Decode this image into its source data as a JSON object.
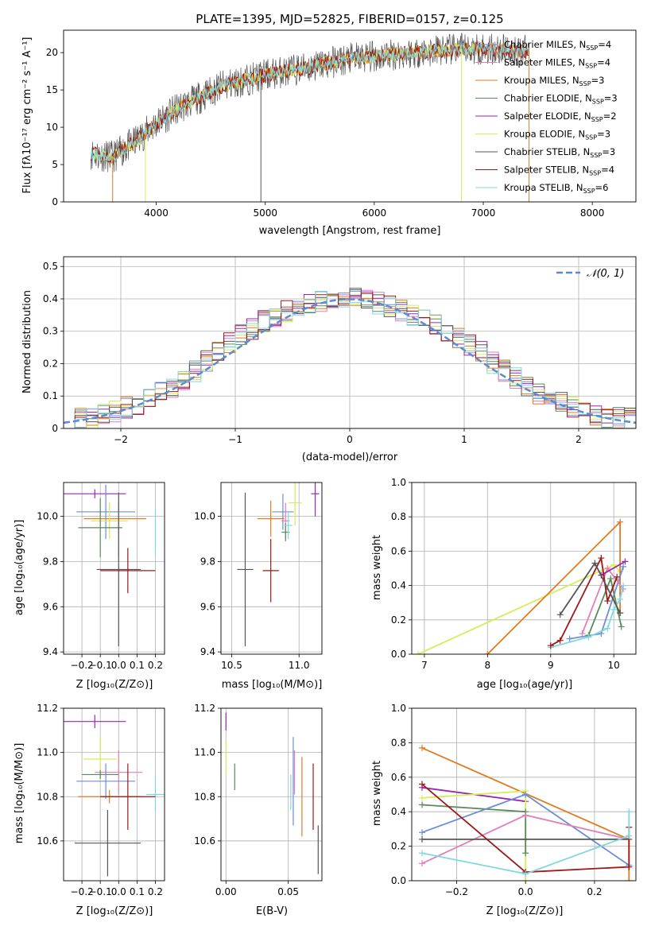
{
  "colors": {
    "chabrier_miles": "#6b8ed6",
    "salpeter_miles": "#e07fb9",
    "kroupa_miles": "#e07b20",
    "chabrier_elodie": "#5a8a5a",
    "salpeter_elodie": "#9a27b0",
    "kroupa_elodie": "#d6ec5a",
    "chabrier_stelib": "#555555",
    "salpeter_stelib": "#a01818",
    "kroupa_stelib": "#7fd8e0",
    "gaussian": "#5a8ad6"
  },
  "chart_data": [
    {
      "id": "spectrum",
      "type": "line",
      "title": "PLATE=1395, MJD=52825, FIBERID=0157, z=0.125",
      "xlabel": "wavelength [Angstrom, rest frame]",
      "ylabel": "Flux [fλ10⁻¹⁷ erg cm⁻² s⁻¹ A⁻¹]",
      "xlim": [
        3150,
        8400
      ],
      "ylim": [
        0,
        23
      ],
      "xticks": [
        4000,
        5000,
        6000,
        7000,
        8000
      ],
      "yticks": [
        0,
        5,
        10,
        15,
        20
      ],
      "continuum": {
        "x": [
          3400,
          3600,
          3800,
          4000,
          4200,
          4400,
          4600,
          4800,
          5000,
          5200,
          5400,
          5600,
          5800,
          6000,
          6200,
          6400,
          6600,
          6800,
          7000,
          7200,
          7400
        ],
        "y": [
          6.5,
          6.0,
          8.0,
          10.5,
          12.5,
          14.0,
          15.5,
          16.2,
          17.0,
          17.5,
          18.0,
          18.7,
          19.2,
          19.5,
          19.8,
          20.0,
          20.3,
          20.4,
          20.5,
          20.3,
          20.2
        ]
      },
      "legend": [
        {
          "label": "Chabrier MILES, N",
          "sub": "SSP",
          "tail": "=4",
          "color_key": "chabrier_miles"
        },
        {
          "label": "Salpeter MILES, N",
          "sub": "SSP",
          "tail": "=4",
          "color_key": "salpeter_miles"
        },
        {
          "label": "Kroupa MILES, N",
          "sub": "SSP",
          "tail": "=3",
          "color_key": "kroupa_miles"
        },
        {
          "label": "Chabrier ELODIE, N",
          "sub": "SSP",
          "tail": "=3",
          "color_key": "chabrier_elodie"
        },
        {
          "label": "Salpeter ELODIE, N",
          "sub": "SSP",
          "tail": "=2",
          "color_key": "salpeter_elodie"
        },
        {
          "label": "Kroupa ELODIE, N",
          "sub": "SSP",
          "tail": "=3",
          "color_key": "kroupa_elodie"
        },
        {
          "label": "Chabrier STELIB, N",
          "sub": "SSP",
          "tail": "=3",
          "color_key": "chabrier_stelib"
        },
        {
          "label": "Salpeter STELIB, N",
          "sub": "SSP",
          "tail": "=4",
          "color_key": "salpeter_stelib"
        },
        {
          "label": "Kroupa STELIB, N",
          "sub": "SSP",
          "tail": "=6",
          "color_key": "kroupa_stelib"
        }
      ]
    },
    {
      "id": "residuals",
      "type": "line",
      "xlabel": "(data-model)/error",
      "ylabel": "Normed distribution",
      "xlim": [
        -2.5,
        2.5
      ],
      "ylim": [
        0,
        0.53
      ],
      "xticks": [
        -2,
        -1,
        0,
        1,
        2
      ],
      "yticks": [
        0.0,
        0.1,
        0.2,
        0.3,
        0.4,
        0.5
      ],
      "xtick_labels": [
        "−2",
        "−1",
        "0",
        "1",
        "2"
      ],
      "legend_label": "𝒩(0, 1)",
      "hist_envelope": {
        "x": [
          -2.5,
          -2.3,
          -2.1,
          -1.9,
          -1.7,
          -1.5,
          -1.3,
          -1.1,
          -0.9,
          -0.7,
          -0.5,
          -0.3,
          -0.1,
          0.1,
          0.3,
          0.5,
          0.7,
          0.9,
          1.1,
          1.3,
          1.5,
          1.7,
          1.9,
          2.1,
          2.3,
          2.5
        ],
        "y": [
          0.02,
          0.03,
          0.05,
          0.07,
          0.1,
          0.14,
          0.19,
          0.25,
          0.3,
          0.34,
          0.37,
          0.39,
          0.41,
          0.41,
          0.38,
          0.36,
          0.33,
          0.29,
          0.25,
          0.19,
          0.14,
          0.1,
          0.07,
          0.05,
          0.03,
          0.03
        ]
      }
    },
    {
      "id": "age_vs_Z",
      "type": "scatter",
      "xlabel": "Z [log₁₀(Z/Z⊙)]",
      "ylabel": "age  [log₁₀(age/yr)]",
      "xlim": [
        -0.3,
        0.25
      ],
      "ylim": [
        9.39,
        10.15
      ],
      "xticks": [
        -0.2,
        -0.1,
        0.0,
        0.1,
        0.2
      ],
      "xtick_labels": [
        "−0.2",
        "−0.1",
        "0.0",
        "0.1",
        "0.2"
      ],
      "yticks": [
        9.4,
        9.6,
        9.8,
        10.0
      ],
      "ytick_labels": [
        "9.4",
        "9.6",
        "9.8",
        "10.0"
      ],
      "points": [
        {
          "c": "salpeter_elodie",
          "x": -0.13,
          "xe": 0.17,
          "y": 10.1,
          "ye": 0.02
        },
        {
          "c": "chabrier_miles",
          "x": -0.07,
          "xe": 0.16,
          "y": 10.02,
          "ye": 0.12
        },
        {
          "c": "salpeter_miles",
          "x": 0.0,
          "xe": 0.0,
          "y": 9.94,
          "ye": 0.12
        },
        {
          "c": "kroupa_miles",
          "x": -0.02,
          "xe": 0.17,
          "y": 9.99,
          "ye": 0.0
        },
        {
          "c": "kroupa_elodie",
          "x": -0.05,
          "xe": 0.1,
          "y": 9.98,
          "ye": 0.08
        },
        {
          "c": "chabrier_elodie",
          "x": -0.1,
          "xe": 0.12,
          "y": 9.95,
          "ye": 0.13
        },
        {
          "c": "kroupa_stelib",
          "x": 0.2,
          "xe": 0.0,
          "y": 9.93,
          "ye": 0.1
        },
        {
          "c": "chabrier_stelib",
          "x": 0.0,
          "xe": 0.12,
          "y": 9.765,
          "ye": 0.34
        },
        {
          "c": "salpeter_stelib",
          "x": 0.05,
          "xe": 0.15,
          "y": 9.76,
          "ye": 0.1
        }
      ]
    },
    {
      "id": "age_vs_mass",
      "type": "scatter",
      "xlabel": "mass [log₁₀(M/M⊙)]",
      "xlim": [
        10.42,
        11.17
      ],
      "ylim": [
        9.39,
        10.15
      ],
      "xticks": [
        10.5,
        11.0
      ],
      "xtick_labels": [
        "10.5",
        "11.0"
      ],
      "yticks": [
        9.4,
        9.6,
        9.8,
        10.0
      ],
      "ytick_labels": [
        "9.4",
        "9.6",
        "9.8",
        "10.0"
      ],
      "points": [
        {
          "c": "salpeter_elodie",
          "x": 11.12,
          "xe": 0.03,
          "y": 10.1,
          "ye": 0.1
        },
        {
          "c": "kroupa_elodie",
          "x": 10.97,
          "xe": 0.05,
          "y": 10.06,
          "ye": 0.1
        },
        {
          "c": "chabrier_miles",
          "x": 10.88,
          "xe": 0.08,
          "y": 10.02,
          "ye": 0.08
        },
        {
          "c": "salpeter_miles",
          "x": 10.9,
          "xe": 0.03,
          "y": 9.98,
          "ye": 0.08
        },
        {
          "c": "kroupa_miles",
          "x": 10.79,
          "xe": 0.1,
          "y": 9.99,
          "ye": 0.08
        },
        {
          "c": "chabrier_elodie",
          "x": 10.9,
          "xe": 0.03,
          "y": 9.93,
          "ye": 0.04
        },
        {
          "c": "kroupa_stelib",
          "x": 10.92,
          "xe": 0.03,
          "y": 9.96,
          "ye": 0.06
        },
        {
          "c": "chabrier_stelib",
          "x": 10.6,
          "xe": 0.06,
          "y": 9.765,
          "ye": 0.34
        },
        {
          "c": "salpeter_stelib",
          "x": 10.79,
          "xe": 0.06,
          "y": 9.76,
          "ye": 0.14
        }
      ]
    },
    {
      "id": "mw_vs_age",
      "type": "line",
      "xlabel": "age  [log₁₀(age/yr)]",
      "ylabel": "mass weight",
      "xlim": [
        6.8,
        10.35
      ],
      "ylim": [
        0,
        1.0
      ],
      "xticks": [
        7,
        8,
        9,
        10
      ],
      "xtick_labels": [
        "7",
        "8",
        "9",
        "10"
      ],
      "yticks": [
        0.0,
        0.2,
        0.4,
        0.6,
        0.8,
        1.0
      ],
      "ytick_labels": [
        "0.0",
        "0.2",
        "0.4",
        "0.6",
        "0.8",
        "1.0"
      ],
      "series": [
        {
          "c": "kroupa_elodie",
          "x": [
            6.9,
            10.0,
            10.1
          ],
          "y": [
            0.0,
            0.52,
            0.48
          ]
        },
        {
          "c": "kroupa_miles",
          "x": [
            8.0,
            10.1,
            10.1
          ],
          "y": [
            0.0,
            0.77,
            0.24
          ]
        },
        {
          "c": "chabrier_miles",
          "x": [
            9.3,
            9.8,
            10.15
          ],
          "y": [
            0.09,
            0.12,
            0.51
          ]
        },
        {
          "c": "salpeter_miles",
          "x": [
            9.5,
            9.9,
            10.15
          ],
          "y": [
            0.12,
            0.5,
            0.38
          ]
        },
        {
          "c": "salpeter_elodie",
          "x": [
            9.8,
            10.18
          ],
          "y": [
            0.46,
            0.54
          ]
        },
        {
          "c": "chabrier_elodie",
          "x": [
            9.6,
            9.95,
            10.12
          ],
          "y": [
            0.11,
            0.44,
            0.16
          ]
        },
        {
          "c": "kroupa_stelib",
          "x": [
            9.0,
            9.6,
            9.9,
            10.0,
            10.1,
            10.15
          ],
          "y": [
            0.04,
            0.1,
            0.15,
            0.26,
            0.32,
            0.4
          ]
        },
        {
          "c": "salpeter_stelib",
          "x": [
            9.0,
            9.15,
            9.8,
            9.9,
            10.05
          ],
          "y": [
            0.05,
            0.08,
            0.56,
            0.31,
            0.45
          ]
        },
        {
          "c": "chabrier_stelib",
          "x": [
            9.15,
            9.7,
            10.1
          ],
          "y": [
            0.23,
            0.53,
            0.24
          ]
        }
      ]
    },
    {
      "id": "mass_vs_Z",
      "type": "scatter",
      "xlabel": "Z [log₁₀(Z/Z⊙)]",
      "ylabel": "mass [log₁₀(M/M⊙)]",
      "xlim": [
        -0.3,
        0.25
      ],
      "ylim": [
        10.42,
        11.2
      ],
      "xticks": [
        -0.2,
        -0.1,
        0.0,
        0.1,
        0.2
      ],
      "xtick_labels": [
        "−0.2",
        "−0.1",
        "0.0",
        "0.1",
        "0.2"
      ],
      "yticks": [
        10.6,
        10.8,
        11.0,
        11.2
      ],
      "ytick_labels": [
        "10.6",
        "10.8",
        "11.0",
        "11.2"
      ],
      "points": [
        {
          "c": "salpeter_elodie",
          "x": -0.13,
          "xe": 0.17,
          "y": 11.14,
          "ye": 0.03
        },
        {
          "c": "kroupa_elodie",
          "x": -0.1,
          "xe": 0.09,
          "y": 10.97,
          "ye": 0.1
        },
        {
          "c": "salpeter_miles",
          "x": 0.0,
          "xe": 0.13,
          "y": 10.91,
          "ye": 0.1
        },
        {
          "c": "chabrier_elodie",
          "x": -0.1,
          "xe": 0.1,
          "y": 10.9,
          "ye": 0.02
        },
        {
          "c": "chabrier_miles",
          "x": -0.07,
          "xe": 0.16,
          "y": 10.87,
          "ye": 0.08
        },
        {
          "c": "kroupa_stelib",
          "x": 0.2,
          "xe": 0.05,
          "y": 10.81,
          "ye": 0.08
        },
        {
          "c": "kroupa_miles",
          "x": -0.05,
          "xe": 0.17,
          "y": 10.8,
          "ye": 0.03
        },
        {
          "c": "salpeter_stelib",
          "x": 0.05,
          "xe": 0.15,
          "y": 10.8,
          "ye": 0.15
        },
        {
          "c": "chabrier_stelib",
          "x": -0.06,
          "xe": 0.18,
          "y": 10.59,
          "ye": 0.15
        }
      ]
    },
    {
      "id": "mass_vs_ebv",
      "type": "scatter",
      "xlabel": "E(B-V)",
      "xlim": [
        -0.004,
        0.077
      ],
      "ylim": [
        10.42,
        11.2
      ],
      "xticks": [
        0.0,
        0.05
      ],
      "xtick_labels": [
        "0.00",
        "0.05"
      ],
      "yticks": [
        10.6,
        10.8,
        11.0,
        11.2
      ],
      "ytick_labels": [
        "10.6",
        "10.8",
        "11.0",
        "11.2"
      ],
      "points": [
        {
          "c": "salpeter_elodie",
          "x": 0.0,
          "xe": 0.0,
          "y": 11.14,
          "ye": 0.04
        },
        {
          "c": "kroupa_elodie",
          "x": 0.0,
          "xe": 0.0,
          "y": 10.98,
          "ye": 0.08
        },
        {
          "c": "chabrier_elodie",
          "x": 0.007,
          "xe": 0.0,
          "y": 10.89,
          "ye": 0.06
        },
        {
          "c": "salpeter_miles",
          "x": 0.055,
          "xe": 0.0,
          "y": 10.91,
          "ye": 0.1
        },
        {
          "c": "kroupa_stelib",
          "x": 0.052,
          "xe": 0.0,
          "y": 10.82,
          "ye": 0.08
        },
        {
          "c": "chabrier_miles",
          "x": 0.054,
          "xe": 0.0,
          "y": 10.87,
          "ye": 0.2
        },
        {
          "c": "kroupa_miles",
          "x": 0.061,
          "xe": 0.0,
          "y": 10.8,
          "ye": 0.18
        },
        {
          "c": "salpeter_stelib",
          "x": 0.07,
          "xe": 0.0,
          "y": 10.8,
          "ye": 0.15
        },
        {
          "c": "chabrier_stelib",
          "x": 0.074,
          "xe": 0.0,
          "y": 10.56,
          "ye": 0.11
        }
      ]
    },
    {
      "id": "mw_vs_Z",
      "type": "line",
      "xlabel": "Z [log₁₀(Z/Z⊙)]",
      "ylabel": "mass weight",
      "xlim": [
        -0.33,
        0.32
      ],
      "ylim": [
        0,
        1.0
      ],
      "xticks": [
        -0.2,
        0.0,
        0.2
      ],
      "xtick_labels": [
        "−0.2",
        "0.0",
        "0.2"
      ],
      "yticks": [
        0.0,
        0.2,
        0.4,
        0.6,
        0.8,
        1.0
      ],
      "ytick_labels": [
        "0.0",
        "0.2",
        "0.4",
        "0.6",
        "0.8",
        "1.0"
      ],
      "series": [
        {
          "c": "kroupa_miles",
          "x": [
            -0.3,
            0.3,
            0.3
          ],
          "y": [
            0.77,
            0.24,
            0.0
          ]
        },
        {
          "c": "salpeter_elodie",
          "x": [
            -0.3,
            0.0
          ],
          "y": [
            0.54,
            0.46
          ]
        },
        {
          "c": "kroupa_elodie",
          "x": [
            -0.3,
            0.0,
            0.0
          ],
          "y": [
            0.48,
            0.52,
            0.0
          ]
        },
        {
          "c": "chabrier_elodie",
          "x": [
            -0.3,
            0.0,
            0.0
          ],
          "y": [
            0.44,
            0.4,
            0.16
          ]
        },
        {
          "c": "chabrier_miles",
          "x": [
            -0.3,
            0.0,
            0.3
          ],
          "y": [
            0.28,
            0.5,
            0.09
          ]
        },
        {
          "c": "salpeter_miles",
          "x": [
            -0.3,
            0.0,
            0.3
          ],
          "y": [
            0.1,
            0.38,
            0.24
          ]
        },
        {
          "c": "chabrier_stelib",
          "x": [
            -0.3,
            0.3
          ],
          "y": [
            0.24,
            0.24
          ]
        },
        {
          "c": "salpeter_stelib",
          "x": [
            -0.3,
            0.0,
            0.3,
            0.3
          ],
          "y": [
            0.56,
            0.05,
            0.08,
            0.31
          ]
        },
        {
          "c": "kroupa_stelib",
          "x": [
            -0.3,
            0.0,
            0.3,
            0.3
          ],
          "y": [
            0.16,
            0.04,
            0.26,
            0.4
          ]
        }
      ]
    }
  ]
}
